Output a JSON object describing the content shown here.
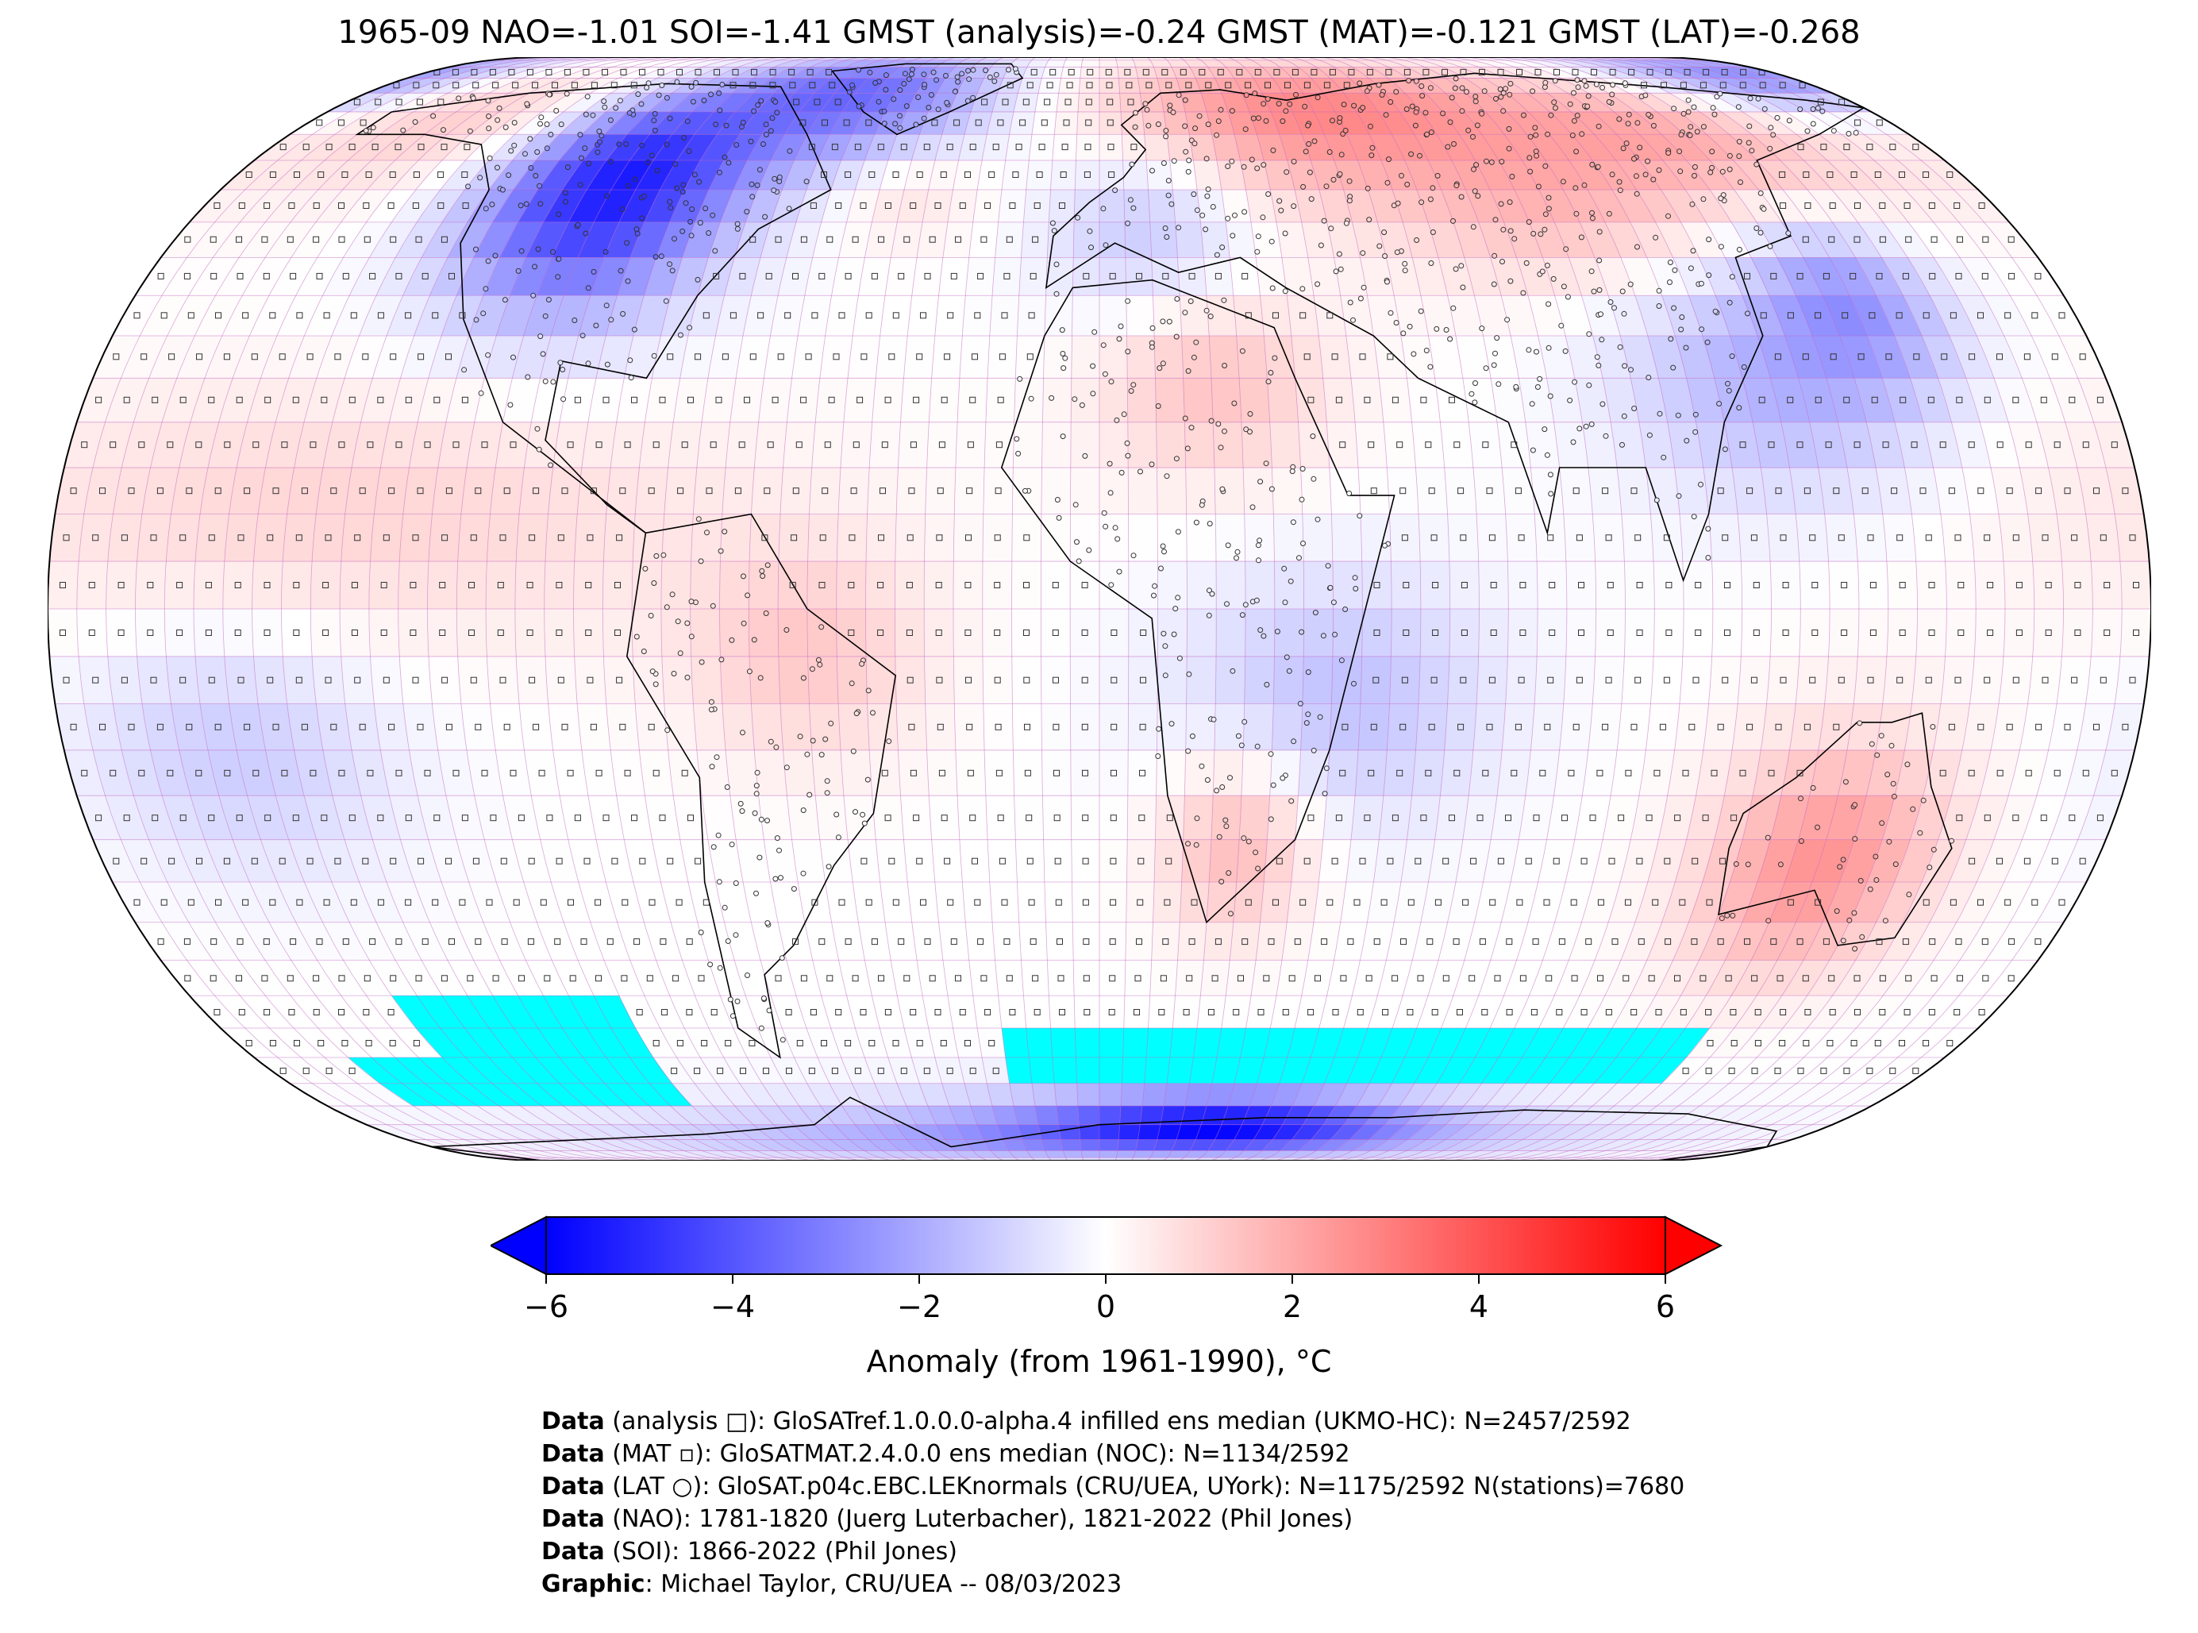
{
  "title": "1965-09 NAO=-1.01 SOI=-1.41 GMST (analysis)=-0.24 GMST (MAT)=-0.121 GMST (LAT)=-0.268",
  "colors": {
    "cold": "#0000ff",
    "neutral": "#ffffff",
    "warm": "#ff0000",
    "no_data": "#00ffff",
    "grid": "#c060c0",
    "coast": "#000000"
  },
  "icons": {
    "analysis_marker": "square-outline-icon",
    "mat_marker": "small-square-icon",
    "lat_marker": "circle-outline-icon"
  },
  "colorbar": {
    "ticks": [
      -6,
      -4,
      -2,
      0,
      2,
      4,
      6
    ],
    "tick_labels": [
      "−6",
      "−4",
      "−2",
      "0",
      "2",
      "4",
      "6"
    ],
    "vmin": -6,
    "vmax": 6,
    "extend": "both",
    "label": "Anomaly (from 1961-1990), °C"
  },
  "credits": [
    {
      "key": "Data",
      "text": " (analysis □): GloSATref.1.0.0.0-alpha.4 infilled ens median (UKMO-HC): N=2457/2592"
    },
    {
      "key": "Data",
      "text": " (MAT ▫): GloSATMAT.2.4.0.0 ens median (NOC): N=1134/2592"
    },
    {
      "key": "Data",
      "text": " (LAT ○): GloSAT.p04c.EBC.LEKnormals (CRU/UEA, UYork): N=1175/2592 N(stations)=7680"
    },
    {
      "key": "Data",
      "text": " (NAO): 1781-1820 (Juerg Luterbacher), 1821-2022 (Phil Jones)"
    },
    {
      "key": "Data",
      "text": " (SOI): 1866-2022 (Phil Jones)"
    },
    {
      "key": "Graphic",
      "text": ": Michael Taylor, CRU/UEA -- 08/03/2023"
    }
  ]
}
